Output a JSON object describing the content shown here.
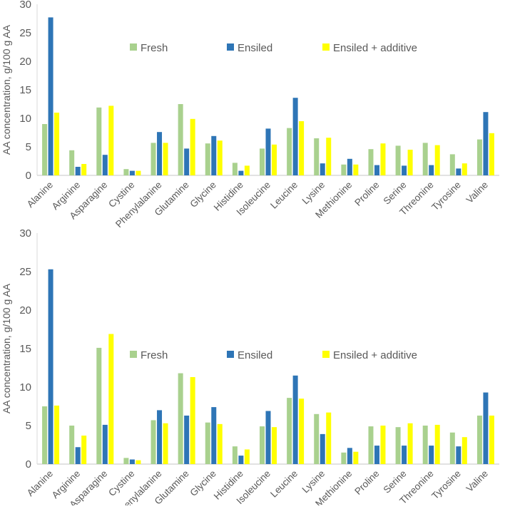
{
  "colors": {
    "Fresh": "#a9d18e",
    "Ensiled": "#2e75b6",
    "Ensiled + additive": "#ffff00",
    "axis": "#d9d9d9",
    "text": "#595959"
  },
  "chart_data": [
    {
      "type": "bar",
      "title": "",
      "xlabel": "",
      "ylabel": "AA concentration, g/100 g AA",
      "ylim": [
        0,
        30
      ],
      "yticks": [
        "0",
        "5",
        "10",
        "15",
        "20",
        "25",
        "30"
      ],
      "grid": false,
      "legend_position": "top-center",
      "categories": [
        "Alanine",
        "Arginine",
        "Asparagine",
        "Cystine",
        "Phenylalanine",
        "Glutamine",
        "Glycine",
        "Histidine",
        "Isoleucine",
        "Leucine",
        "Lysine",
        "Methionine",
        "Proline",
        "Serine",
        "Threonine",
        "Tyrosine",
        "Valine"
      ],
      "series": [
        {
          "name": "Fresh",
          "values": [
            9.0,
            4.4,
            11.9,
            1.1,
            5.7,
            12.5,
            5.6,
            2.2,
            4.7,
            8.3,
            6.5,
            1.9,
            4.6,
            5.2,
            5.7,
            3.7,
            6.3
          ]
        },
        {
          "name": "Ensiled",
          "values": [
            27.7,
            1.5,
            3.6,
            0.8,
            7.6,
            4.7,
            6.9,
            0.8,
            8.2,
            13.6,
            2.1,
            2.9,
            1.8,
            1.7,
            1.8,
            1.2,
            11.1
          ]
        },
        {
          "name": "Ensiled + additive",
          "values": [
            11.0,
            2.0,
            12.2,
            0.8,
            5.7,
            9.9,
            6.1,
            1.7,
            5.4,
            9.5,
            6.6,
            1.9,
            5.6,
            4.5,
            5.3,
            2.1,
            7.4
          ]
        }
      ]
    },
    {
      "type": "bar",
      "title": "",
      "xlabel": "",
      "ylabel": "AA concentration, g/100 g AA",
      "ylim": [
        0,
        30
      ],
      "yticks": [
        "0",
        "5",
        "10",
        "15",
        "20",
        "25",
        "30"
      ],
      "grid": false,
      "legend_position": "top-center",
      "categories": [
        "Alanine",
        "Arginine",
        "Asparagine",
        "Cystine",
        "Phenylalanine",
        "Glutamine",
        "Glycine",
        "Histidine",
        "Isoleucine",
        "Leucine",
        "Lysine",
        "Methionine",
        "Proline",
        "Serine",
        "Threonine",
        "Tyrosine",
        "Valine"
      ],
      "series": [
        {
          "name": "Fresh",
          "values": [
            7.5,
            5.0,
            15.1,
            0.8,
            5.7,
            11.8,
            5.4,
            2.3,
            4.9,
            8.6,
            6.5,
            1.5,
            4.9,
            4.8,
            5.0,
            4.1,
            6.3
          ]
        },
        {
          "name": "Ensiled",
          "values": [
            25.3,
            2.2,
            5.1,
            0.6,
            7.0,
            6.3,
            7.4,
            1.1,
            6.9,
            11.5,
            3.9,
            2.1,
            2.4,
            2.4,
            2.4,
            2.3,
            9.3
          ]
        },
        {
          "name": "Ensiled + additive",
          "values": [
            7.6,
            3.7,
            16.9,
            0.5,
            5.3,
            11.3,
            5.2,
            1.9,
            4.8,
            8.5,
            6.7,
            1.6,
            5.0,
            5.3,
            5.1,
            3.5,
            6.3
          ]
        }
      ]
    }
  ]
}
